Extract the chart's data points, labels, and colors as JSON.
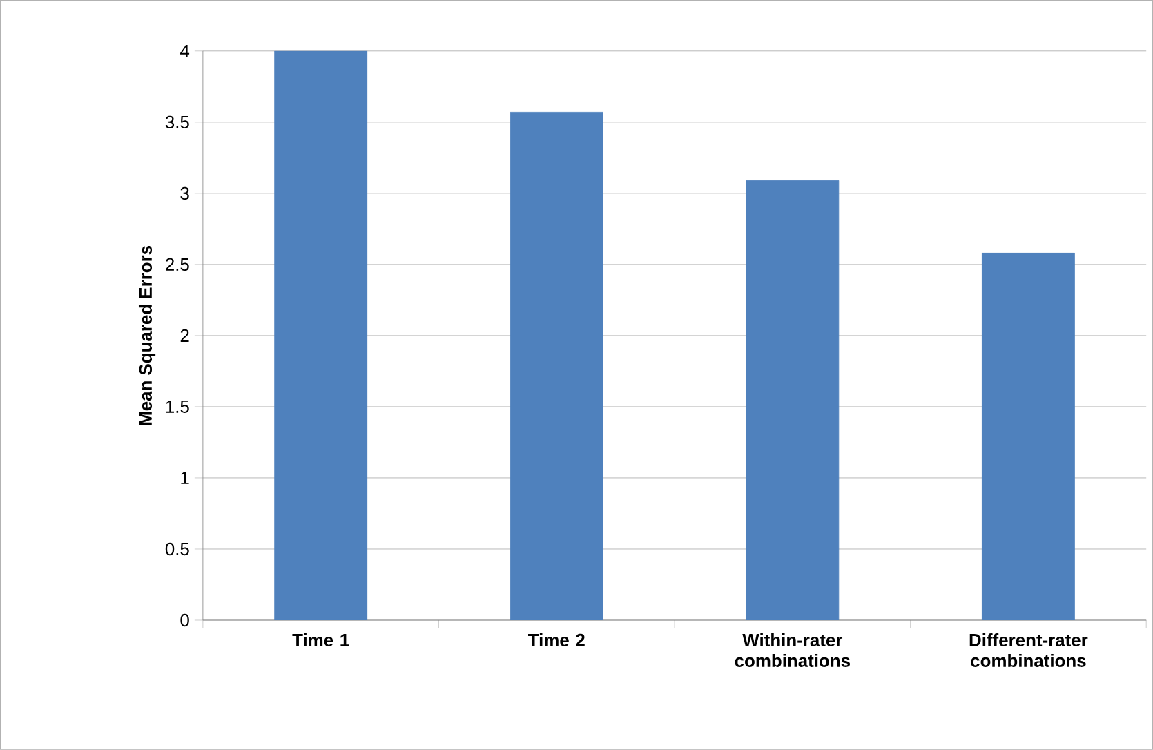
{
  "chart_data": {
    "type": "bar",
    "ylabel": "Mean Squared Errors",
    "categories": [
      "Time 1",
      "Time 2",
      "Within-rater combinations",
      "Different-rater combinations"
    ],
    "values": [
      4.0,
      3.57,
      3.09,
      2.58
    ],
    "color": "#4f81bd",
    "ylim": [
      0,
      4
    ],
    "yticks": [
      0,
      0.5,
      1,
      1.5,
      2,
      2.5,
      3,
      3.5,
      4
    ],
    "grid": "y"
  }
}
